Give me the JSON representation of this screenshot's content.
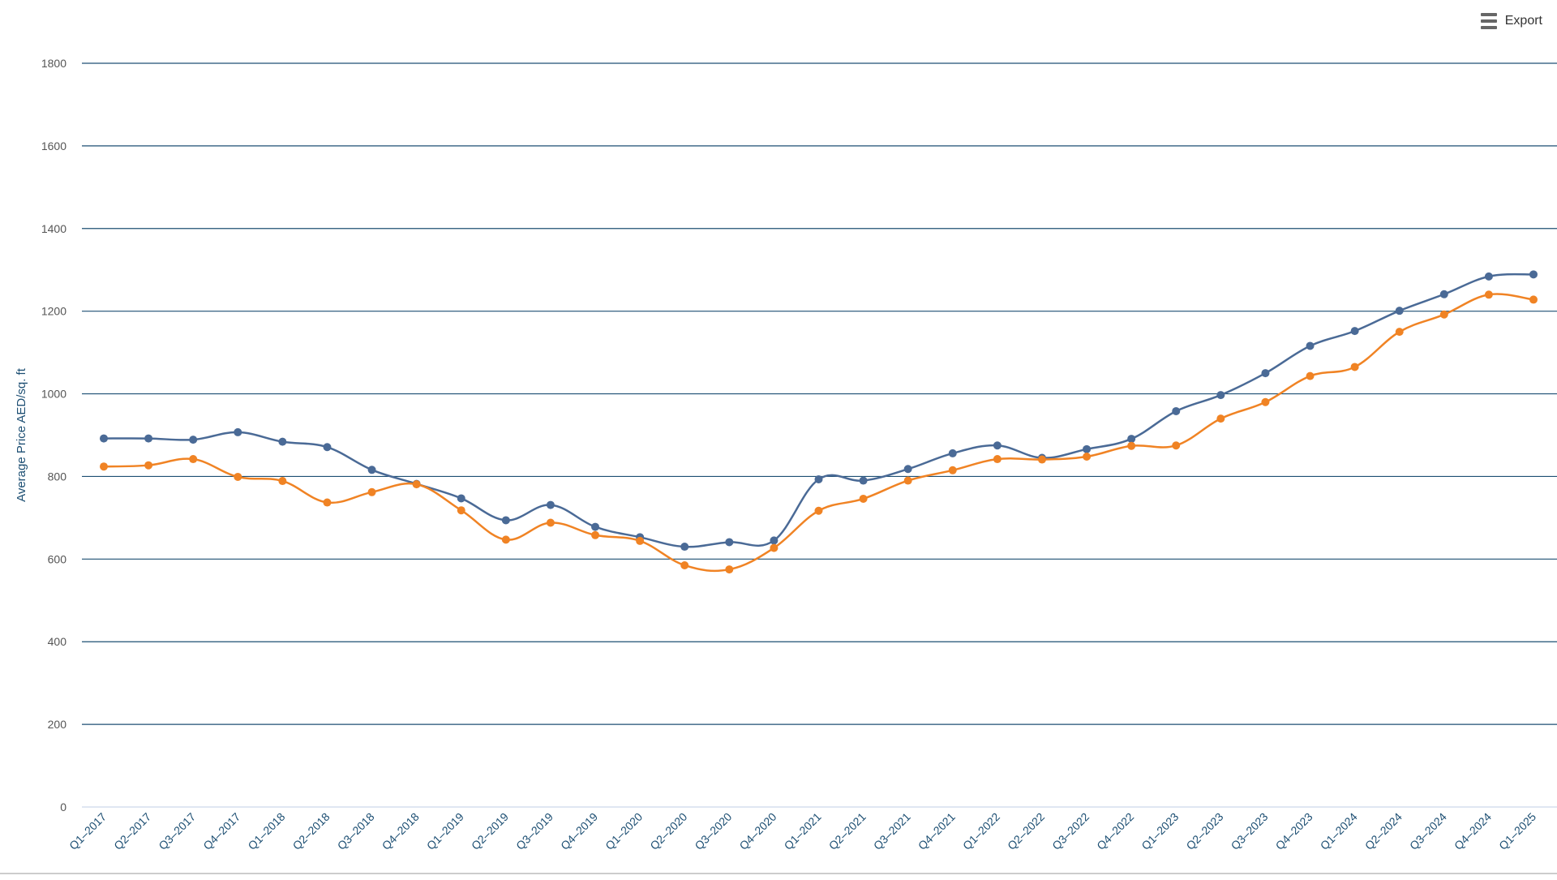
{
  "toolbar": {
    "export_label": "Export"
  },
  "colors": {
    "series_a": "#4a6a96",
    "series_b": "#f08324",
    "grid": "#1d4f73",
    "axis_text": "#555555",
    "xlabel_text": "#1d4f73",
    "ylabel_text": "#1d4f73"
  },
  "chart_data": {
    "type": "line",
    "title": "",
    "xlabel": "",
    "ylabel": "Average Price AED/sq. ft",
    "ylim": [
      0,
      1800
    ],
    "yticks": [
      0,
      200,
      400,
      600,
      800,
      1000,
      1200,
      1400,
      1600,
      1800
    ],
    "grid": true,
    "categories": [
      "Q1–2017",
      "Q2–2017",
      "Q3–2017",
      "Q4–2017",
      "Q1–2018",
      "Q2–2018",
      "Q3–2018",
      "Q4–2018",
      "Q1–2019",
      "Q2–2019",
      "Q3–2019",
      "Q4–2019",
      "Q1–2020",
      "Q2–2020",
      "Q3–2020",
      "Q4–2020",
      "Q1–2021",
      "Q2–2021",
      "Q3–2021",
      "Q4–2021",
      "Q1–2022",
      "Q2–2022",
      "Q3–2022",
      "Q4–2022",
      "Q1–2023",
      "Q2–2023",
      "Q3–2023",
      "Q4–2023",
      "Q1–2024",
      "Q2–2024",
      "Q3–2024",
      "Q4–2024",
      "Q1–2025"
    ],
    "series": [
      {
        "values": [
          892,
          892,
          889,
          907,
          884,
          871,
          816,
          782,
          747,
          694,
          731,
          678,
          653,
          630,
          641,
          645,
          793,
          790,
          818,
          856,
          875,
          845,
          866,
          891,
          958,
          997,
          1050,
          1116,
          1152,
          1201,
          1241,
          1284,
          1289
        ]
      },
      {
        "values": [
          824,
          827,
          842,
          799,
          789,
          737,
          762,
          781,
          718,
          647,
          688,
          658,
          644,
          585,
          575,
          627,
          717,
          746,
          790,
          815,
          842,
          841,
          848,
          874,
          875,
          940,
          980,
          1043,
          1065,
          1150,
          1192,
          1240,
          1228
        ]
      }
    ]
  }
}
